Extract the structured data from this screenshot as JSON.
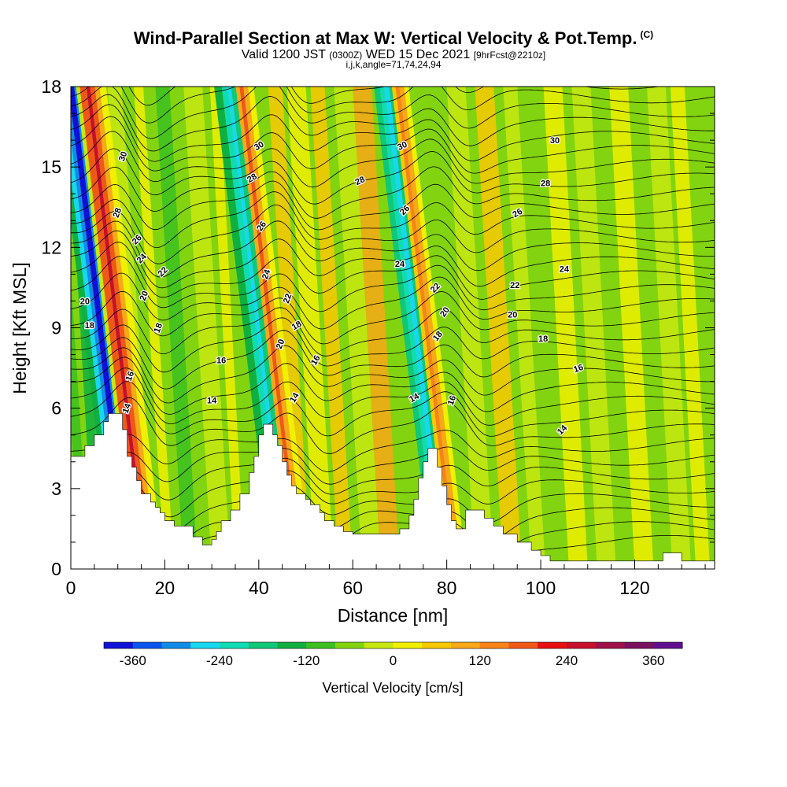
{
  "chart_data": {
    "type": "heatmap",
    "title": "Wind-Parallel Section at Max W: Vertical Velocity & Pot.Temp.",
    "title_mark": "(C)",
    "subtitle": {
      "valid": "Valid 1200 JST",
      "z": "(0300Z)",
      "date": "WED 15 Dec 2021",
      "fcst": "[9hrFcst@2210z]"
    },
    "subtitle2": "i,j,k,angle=71,74,24,94",
    "xlabel": "Distance [nm]",
    "ylabel": "Height [Kft MSL]",
    "xlim": [
      0,
      137
    ],
    "ylim": [
      0,
      18
    ],
    "x_ticks": [
      "0",
      "20",
      "40",
      "60",
      "80",
      "100",
      "120"
    ],
    "y_ticks": [
      "0",
      "3",
      "6",
      "9",
      "12",
      "15",
      "18"
    ],
    "colorbar": {
      "label": "Vertical Velocity [cm/s]",
      "tick_labels": [
        "-360",
        "-240",
        "-120",
        "0",
        "120",
        "240",
        "360"
      ],
      "colors": [
        "#1010d8",
        "#0a55f0",
        "#108ce8",
        "#18d8f0",
        "#10dcb4",
        "#10c878",
        "#10b040",
        "#3cc020",
        "#82d410",
        "#c8e810",
        "#f0f000",
        "#f8c800",
        "#f8a818",
        "#f88418",
        "#f05818",
        "#e81010",
        "#c8102c",
        "#a01048",
        "#7a1060",
        "#601090"
      ]
    },
    "contour_labels": [
      "30",
      "28",
      "26",
      "24",
      "22",
      "20",
      "18",
      "16",
      "14"
    ],
    "terrain": [
      [
        0,
        4.2
      ],
      [
        3,
        4.2
      ],
      [
        3,
        4.6
      ],
      [
        5,
        4.6
      ],
      [
        5,
        5.0
      ],
      [
        7,
        5.0
      ],
      [
        7,
        5.5
      ],
      [
        8,
        5.5
      ],
      [
        8,
        5.8
      ],
      [
        11,
        5.8
      ],
      [
        11,
        5.2
      ],
      [
        12,
        5.2
      ],
      [
        12,
        4.2
      ],
      [
        13,
        4.2
      ],
      [
        13,
        3.8
      ],
      [
        14,
        3.8
      ],
      [
        14,
        3.3
      ],
      [
        15,
        3.3
      ],
      [
        15,
        2.8
      ],
      [
        17,
        2.8
      ],
      [
        17,
        2.5
      ],
      [
        18,
        2.5
      ],
      [
        18,
        2.3
      ],
      [
        19,
        2.3
      ],
      [
        19,
        2.1
      ],
      [
        20,
        2.1
      ],
      [
        20,
        1.8
      ],
      [
        22,
        1.8
      ],
      [
        22,
        1.6
      ],
      [
        26,
        1.6
      ],
      [
        26,
        1.2
      ],
      [
        28,
        1.2
      ],
      [
        28,
        0.9
      ],
      [
        30,
        0.9
      ],
      [
        30,
        1.1
      ],
      [
        31,
        1.1
      ],
      [
        31,
        1.4
      ],
      [
        32,
        1.4
      ],
      [
        32,
        1.8
      ],
      [
        34,
        1.8
      ],
      [
        34,
        2.2
      ],
      [
        36,
        2.2
      ],
      [
        36,
        2.8
      ],
      [
        38,
        2.8
      ],
      [
        38,
        3.6
      ],
      [
        39,
        3.6
      ],
      [
        39,
        4.2
      ],
      [
        40,
        4.2
      ],
      [
        40,
        5.0
      ],
      [
        41,
        5.0
      ],
      [
        41,
        5.4
      ],
      [
        43,
        5.4
      ],
      [
        43,
        5.0
      ],
      [
        44,
        5.0
      ],
      [
        44,
        4.6
      ],
      [
        45,
        4.6
      ],
      [
        45,
        4.0
      ],
      [
        46,
        4.0
      ],
      [
        46,
        3.5
      ],
      [
        47,
        3.5
      ],
      [
        47,
        3.1
      ],
      [
        48,
        3.1
      ],
      [
        48,
        2.8
      ],
      [
        50,
        2.8
      ],
      [
        50,
        2.6
      ],
      [
        51,
        2.6
      ],
      [
        51,
        2.4
      ],
      [
        53,
        2.4
      ],
      [
        53,
        2.1
      ],
      [
        54,
        2.1
      ],
      [
        54,
        1.8
      ],
      [
        56,
        1.8
      ],
      [
        56,
        1.6
      ],
      [
        58,
        1.6
      ],
      [
        58,
        1.4
      ],
      [
        60,
        1.4
      ],
      [
        60,
        1.3
      ],
      [
        65,
        1.3
      ],
      [
        65,
        1.3
      ],
      [
        70,
        1.3
      ],
      [
        70,
        1.5
      ],
      [
        72,
        1.5
      ],
      [
        72,
        2.0
      ],
      [
        73,
        2.0
      ],
      [
        73,
        2.6
      ],
      [
        74,
        2.6
      ],
      [
        74,
        3.4
      ],
      [
        75,
        3.4
      ],
      [
        75,
        4.0
      ],
      [
        76,
        4.0
      ],
      [
        76,
        4.5
      ],
      [
        78,
        4.5
      ],
      [
        78,
        3.8
      ],
      [
        79,
        3.8
      ],
      [
        79,
        3.1
      ],
      [
        80,
        3.1
      ],
      [
        80,
        2.4
      ],
      [
        81,
        2.4
      ],
      [
        81,
        1.8
      ],
      [
        82,
        1.8
      ],
      [
        82,
        1.5
      ],
      [
        84,
        1.5
      ],
      [
        84,
        2.2
      ],
      [
        88,
        2.2
      ],
      [
        88,
        1.9
      ],
      [
        90,
        1.9
      ],
      [
        90,
        1.6
      ],
      [
        92,
        1.6
      ],
      [
        92,
        1.3
      ],
      [
        95,
        1.3
      ],
      [
        95,
        1.0
      ],
      [
        98,
        1.0
      ],
      [
        98,
        0.7
      ],
      [
        100,
        0.7
      ],
      [
        100,
        0.5
      ],
      [
        102,
        0.5
      ],
      [
        102,
        0.3
      ],
      [
        104,
        0.3
      ],
      [
        104,
        0.3
      ],
      [
        112,
        0.3
      ],
      [
        112,
        0.3
      ],
      [
        126,
        0.3
      ],
      [
        126,
        0.6
      ],
      [
        130,
        0.6
      ],
      [
        130,
        0.3
      ],
      [
        137,
        0.3
      ],
      [
        137,
        0
      ]
    ]
  }
}
